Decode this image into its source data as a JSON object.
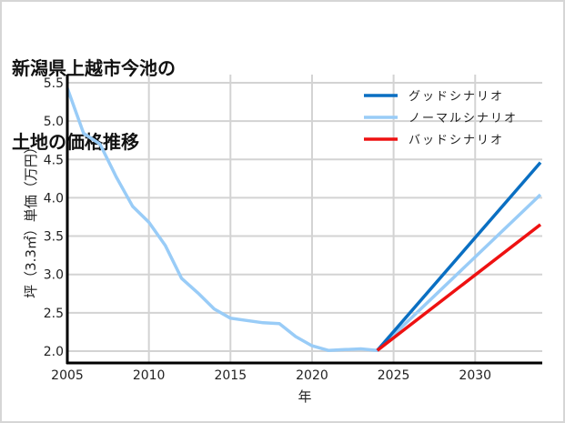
{
  "title_line1": "新潟県上越市今池の",
  "title_line2": "土地の価格推移",
  "chart_data": {
    "type": "line",
    "title": "新潟県上越市今池の土地の価格推移",
    "xlabel": "年",
    "ylabel": "坪（3.3㎡）単価（万円）",
    "xlim": [
      2005,
      2034
    ],
    "ylim": [
      1.85,
      5.6
    ],
    "x_ticks": [
      2005,
      2010,
      2015,
      2020,
      2025,
      2030
    ],
    "x_tick_labels": [
      "2005",
      "2010",
      "2015",
      "2020",
      "2025",
      "2030"
    ],
    "y_ticks": [
      2.0,
      2.5,
      3.0,
      3.5,
      4.0,
      4.5,
      5.0,
      5.5
    ],
    "y_tick_labels": [
      "2.0",
      "2.5",
      "3.0",
      "3.5",
      "4.0",
      "4.5",
      "5.0",
      "5.5"
    ],
    "grid": true,
    "legend_position": "upper right",
    "series": [
      {
        "name": "グッドシナリオ",
        "color": "#0a6fc2",
        "x": [
          2024,
          2034
        ],
        "y": [
          2.01,
          4.46
        ]
      },
      {
        "name": "ノーマルシナリオ",
        "color": "#99ccf7",
        "x": [
          2005,
          2006,
          2007,
          2008,
          2009,
          2010,
          2011,
          2012,
          2013,
          2014,
          2015,
          2016,
          2017,
          2018,
          2019,
          2020,
          2021,
          2022,
          2023,
          2024,
          2034
        ],
        "y": [
          5.43,
          4.84,
          4.7,
          4.27,
          3.89,
          3.68,
          3.38,
          2.95,
          2.76,
          2.55,
          2.43,
          2.4,
          2.37,
          2.36,
          2.19,
          2.07,
          2.01,
          2.02,
          2.03,
          2.01,
          4.04
        ]
      },
      {
        "name": "バッドシナリオ",
        "color": "#ee1111",
        "x": [
          2024,
          2034
        ],
        "y": [
          2.01,
          3.65
        ]
      }
    ]
  }
}
